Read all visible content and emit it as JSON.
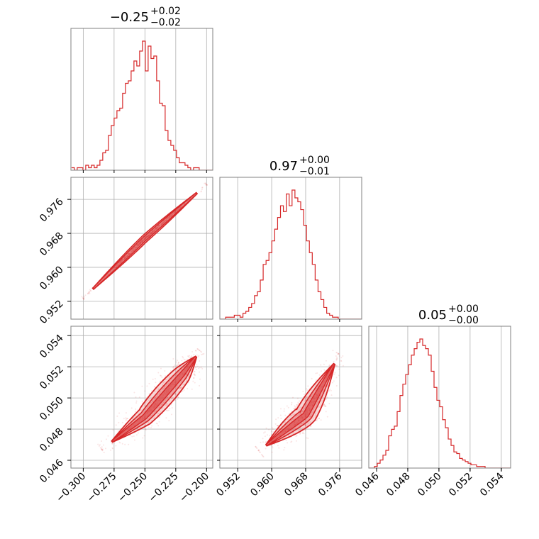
{
  "chart_data": {
    "type": "corner",
    "color": "#d62728",
    "grid": true,
    "parameters": [
      {
        "title_main": "−0.25",
        "title_sup": "+0.02",
        "title_sub": "−0.02",
        "median": -0.25,
        "range": [
          -0.31,
          -0.195
        ]
      },
      {
        "title_main": "0.97",
        "title_sup": "+0.00",
        "title_sub": "−0.01",
        "median": 0.97,
        "range": [
          0.9478,
          0.9812
        ]
      },
      {
        "title_main": "0.05",
        "title_sup": "+0.00",
        "title_sub": "−0.00",
        "median": 0.0493,
        "range": [
          0.0455,
          0.0546
        ]
      }
    ],
    "ticks": [
      {
        "values": [
          -0.3,
          -0.275,
          -0.25,
          -0.225,
          -0.2
        ],
        "labels": [
          "−0.300",
          "−0.275",
          "−0.250",
          "−0.225",
          "−0.200"
        ]
      },
      {
        "values": [
          0.952,
          0.96,
          0.968,
          0.976
        ],
        "labels": [
          "0.952",
          "0.960",
          "0.968",
          "0.976"
        ]
      },
      {
        "values": [
          0.046,
          0.048,
          0.05,
          0.052,
          0.054
        ],
        "labels": [
          "0.046",
          "0.048",
          "0.050",
          "0.052",
          "0.054"
        ]
      }
    ],
    "histograms": [
      {
        "bin_start": -0.3095,
        "bin_width": 0.0023,
        "counts": [
          1,
          0,
          1,
          1,
          0,
          2,
          1,
          2,
          1,
          2,
          4,
          7,
          8,
          14,
          18,
          21,
          24,
          25,
          31,
          35,
          36,
          40,
          44,
          42,
          48,
          52,
          40,
          50,
          45,
          46,
          36,
          27,
          26,
          16,
          12,
          10,
          8,
          5,
          3,
          3,
          2,
          1,
          0,
          1,
          1,
          0,
          0,
          0,
          0,
          0
        ]
      },
      {
        "bin_start": 0.9478,
        "bin_width": 0.00068,
        "counts": [
          0,
          0,
          1,
          1,
          1,
          2,
          2,
          1,
          3,
          4,
          6,
          8,
          12,
          14,
          20,
          28,
          30,
          34,
          40,
          46,
          52,
          58,
          55,
          64,
          58,
          66,
          62,
          60,
          56,
          48,
          40,
          34,
          28,
          20,
          14,
          10,
          6,
          3,
          2,
          1,
          1,
          0,
          0,
          0,
          0,
          0,
          0,
          0,
          0,
          0
        ]
      },
      {
        "bin_start": 0.0455,
        "bin_width": 0.000182,
        "counts": [
          0,
          0,
          1,
          3,
          5,
          8,
          11,
          20,
          24,
          26,
          35,
          45,
          52,
          58,
          64,
          70,
          74,
          78,
          80,
          76,
          74,
          70,
          60,
          50,
          42,
          38,
          30,
          25,
          18,
          14,
          10,
          9,
          6,
          5,
          4,
          3,
          2,
          2,
          1,
          1,
          1,
          0,
          0,
          0,
          0,
          0,
          0,
          0,
          0,
          0
        ]
      }
    ],
    "joint": [
      {
        "x_param": 0,
        "y_param": 1,
        "relation": "linear",
        "points": [
          [
            -0.3,
            0.9527
          ],
          [
            -0.25,
            0.9668
          ],
          [
            -0.2,
            0.9795
          ]
        ]
      },
      {
        "x_param": 0,
        "y_param": 2,
        "relation": "curved",
        "points": [
          [
            -0.285,
            0.0467
          ],
          [
            -0.25,
            0.0488
          ],
          [
            -0.22,
            0.0515
          ],
          [
            -0.205,
            0.053
          ]
        ]
      },
      {
        "x_param": 1,
        "y_param": 2,
        "relation": "curved",
        "points": [
          [
            0.957,
            0.0466
          ],
          [
            0.968,
            0.0489
          ],
          [
            0.976,
            0.0528
          ]
        ]
      }
    ]
  }
}
